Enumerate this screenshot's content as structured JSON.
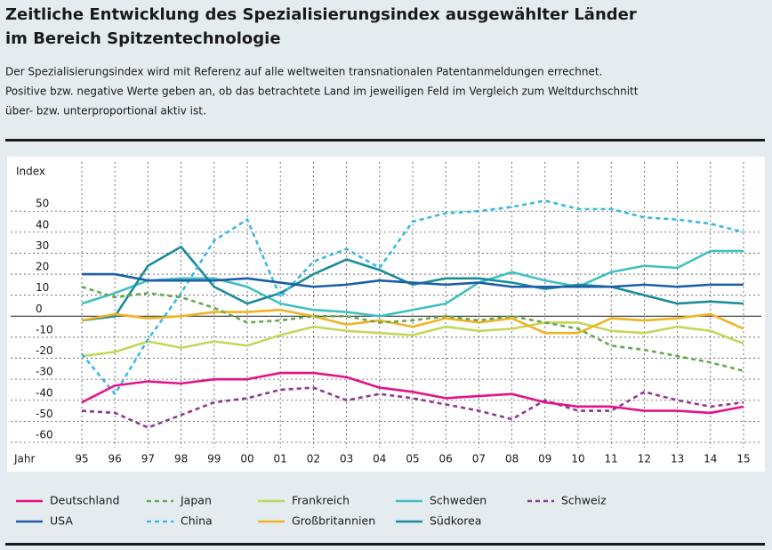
{
  "chart_data": {
    "type": "line",
    "title": [
      "Zeitliche Entwicklung des Spezialisierungsindex ausgewählter Länder",
      "im Bereich Spitzentechnologie"
    ],
    "subtitle": [
      "Der Spezialisierungsindex wird mit Referenz auf alle weltweiten transnationalen Patentanmeldungen errechnet.",
      "Positive bzw. negative Werte geben an, ob das betrachtete Land im jeweiligen Feld im Vergleich zum Weltdurchschnitt",
      "über- bzw. unterproportional aktiv ist."
    ],
    "x_label": "Jahr",
    "y_label": "Index",
    "categories": [
      "95",
      "96",
      "97",
      "98",
      "99",
      "00",
      "01",
      "02",
      "03",
      "04",
      "05",
      "06",
      "07",
      "08",
      "09",
      "10",
      "11",
      "12",
      "13",
      "14",
      "15"
    ],
    "ylim": [
      -60,
      70
    ],
    "yticks": [
      50,
      40,
      30,
      20,
      10,
      0,
      -10,
      -20,
      -30,
      -40,
      -50,
      -60
    ],
    "grid": true,
    "series": [
      {
        "name": "Deutschland",
        "color": "#e5128a",
        "dashed": false,
        "values": [
          -41,
          -33,
          -31,
          -32,
          -30,
          -30,
          -27,
          -27,
          -29,
          -34,
          -36,
          -39,
          -38,
          -37,
          -41,
          -43,
          -43,
          -45,
          -45,
          -46,
          -43
        ]
      },
      {
        "name": "USA",
        "color": "#1b5ea6",
        "dashed": false,
        "values": [
          20,
          20,
          17,
          17,
          17,
          18,
          16,
          14,
          15,
          17,
          16,
          15,
          16,
          14,
          14,
          14,
          14,
          15,
          14,
          15,
          15
        ]
      },
      {
        "name": "Japan",
        "color": "#6aa84f",
        "dashed": true,
        "values": [
          14,
          9,
          11,
          9,
          4,
          -3,
          -2,
          0,
          0,
          -3,
          -2,
          0,
          -2,
          0,
          -3,
          -6,
          -14,
          -16,
          -19,
          -22,
          -26
        ]
      },
      {
        "name": "China",
        "color": "#3bb8e8",
        "dashed": true,
        "values": [
          -18,
          -37,
          -11,
          11,
          36,
          46,
          9,
          26,
          32,
          23,
          45,
          49,
          50,
          52,
          55,
          51,
          51,
          47,
          46,
          44,
          40
        ]
      },
      {
        "name": "Frankreich",
        "color": "#c5d65a",
        "dashed": false,
        "values": [
          -19,
          -17,
          -12,
          -15,
          -12,
          -14,
          -9,
          -5,
          -7,
          -8,
          -9,
          -5,
          -7,
          -6,
          -3,
          -3,
          -7,
          -8,
          -5,
          -7,
          -13
        ]
      },
      {
        "name": "Großbritannien",
        "color": "#f0b323",
        "dashed": false,
        "values": [
          -2,
          1,
          -1,
          0,
          2,
          2,
          3,
          0,
          -4,
          -2,
          -5,
          -1,
          -3,
          -1,
          -8,
          -8,
          -1,
          -2,
          -1,
          1,
          -6
        ]
      },
      {
        "name": "Schweden",
        "color": "#3fc1c0",
        "dashed": false,
        "values": [
          6,
          11,
          17,
          18,
          18,
          14,
          6,
          3,
          2,
          0,
          3,
          6,
          16,
          21,
          17,
          14,
          21,
          24,
          23,
          31,
          31
        ]
      },
      {
        "name": "Südkorea",
        "color": "#1a8c9a",
        "dashed": false,
        "values": [
          -2,
          0,
          24,
          33,
          14,
          6,
          11,
          20,
          27,
          22,
          15,
          18,
          18,
          16,
          13,
          15,
          14,
          10,
          6,
          7,
          6
        ]
      },
      {
        "name": "Schweiz",
        "color": "#8e3b8e",
        "dashed": true,
        "values": [
          -45,
          -46,
          -53,
          -47,
          -41,
          -39,
          -35,
          -34,
          -40,
          -37,
          -39,
          -42,
          -45,
          -49,
          -40,
          -45,
          -45,
          -36,
          -40,
          -43,
          -41
        ]
      }
    ]
  }
}
